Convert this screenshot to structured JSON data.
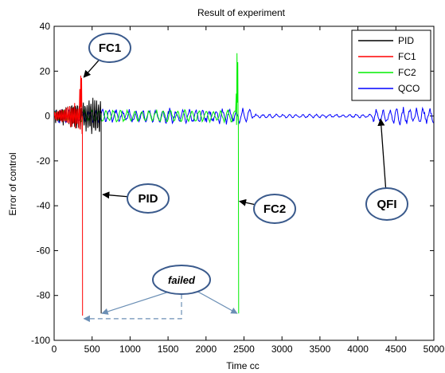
{
  "chart_data": {
    "type": "line",
    "title": "Result of experiment",
    "xlabel": "Time cc",
    "ylabel": "Error of control",
    "xlim": [
      0,
      5000
    ],
    "ylim": [
      -100,
      40
    ],
    "xticks": [
      0,
      500,
      1000,
      1500,
      2000,
      2500,
      3000,
      3500,
      4000,
      4500,
      5000
    ],
    "yticks": [
      -100,
      -80,
      -60,
      -40,
      -20,
      0,
      20,
      40
    ],
    "grid": false,
    "legend_position": "top-right",
    "series": [
      {
        "name": "PID",
        "color": "#000000",
        "behavior": "oscillates around 0 with amplitude up to about 10 until t=620, then drops to about -88",
        "x": [
          0,
          620,
          620
        ],
        "y": [
          0,
          0,
          -88
        ]
      },
      {
        "name": "FC1",
        "color": "#ff0000",
        "behavior": "oscillates around 0, peak about 18 near t=350, then drops to about -89",
        "x": [
          0,
          350,
          370,
          380
        ],
        "y": [
          0,
          18,
          0,
          -89
        ]
      },
      {
        "name": "FC2",
        "color": "#00ee00",
        "behavior": "oscillates around 0 with amplitude about 2, spike to about 28 near t=2400, then drops to about -88",
        "x": [
          0,
          2400,
          2420,
          2430
        ],
        "y": [
          0,
          28,
          0,
          -88
        ]
      },
      {
        "name": "QCO",
        "color": "#0000ff",
        "behavior": "oscillates around 0 with amplitude about 3 over the whole range, quieter between t=2600 and t=4200",
        "x": [
          0,
          5000
        ],
        "y": [
          0,
          0
        ]
      }
    ],
    "annotations": [
      {
        "text": "FC1",
        "series": "FC1",
        "x": 380,
        "y": 18
      },
      {
        "text": "PID",
        "series": "PID",
        "x": 620,
        "y": -35
      },
      {
        "text": "FC2",
        "series": "FC2",
        "x": 2420,
        "y": -38
      },
      {
        "text": "QFI",
        "series": "QCO",
        "x": 4300,
        "y": 0
      },
      {
        "text": "failed",
        "x": 1700,
        "y": -80
      }
    ],
    "failed_markers": [
      {
        "x": 350,
        "y": -90
      },
      {
        "x": 620,
        "y": -88
      },
      {
        "x": 2420,
        "y": -88
      }
    ]
  }
}
